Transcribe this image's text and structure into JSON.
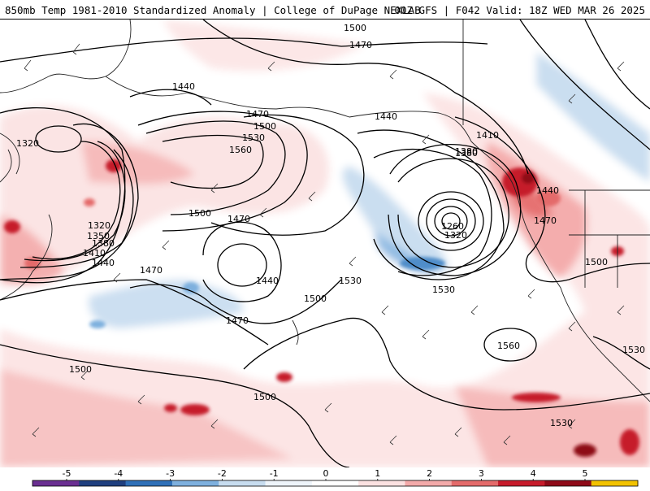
{
  "header": {
    "left_title": "850mb Temp 1981-2010 Standardized Anomaly | College of DuPage NEXLAB",
    "right_title": "00Z GFS | F042 Valid: 18Z WED MAR 26 2025"
  },
  "contour_labels": [
    "1500",
    "1470",
    "1440",
    "1320",
    "1470",
    "1500",
    "1530",
    "1560",
    "1440",
    "1410",
    "1380",
    "1320",
    "1350",
    "1380",
    "1410",
    "1440",
    "1500",
    "1470",
    "1470",
    "1440",
    "1500",
    "1470",
    "1530",
    "1380",
    "1260",
    "1320",
    "1530",
    "1440",
    "1470",
    "1500",
    "1560",
    "1530",
    "1530",
    "1500",
    "1500"
  ],
  "colorbar": {
    "ticks": [
      "-5",
      "-4",
      "-3",
      "-2",
      "-1",
      "0",
      "1",
      "2",
      "3",
      "4",
      "5"
    ],
    "colors": [
      "#6a2f91",
      "#1f3f7f",
      "#2f70b8",
      "#7eb0de",
      "#c7dcef",
      "#eef4fa",
      "#ffffff",
      "#fbe1e1",
      "#f3aaaa",
      "#e46b6b",
      "#c61b2b",
      "#8e0a18",
      "#f2c200"
    ]
  }
}
